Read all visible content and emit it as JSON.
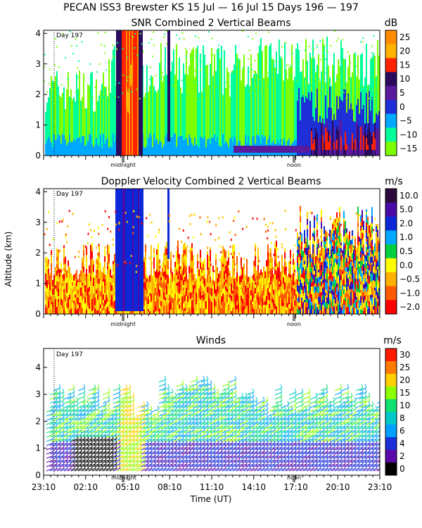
{
  "figure": {
    "title": "PECAN ISS3 Brewster KS  15 Jul — 16 Jul 15 Days 196 — 197",
    "ylabel": "Altitude (km)",
    "xlabel": "Time (UT)"
  },
  "chart_data": [
    {
      "type": "heatmap",
      "title": "SNR Combined 2 Vertical Beams",
      "units": "dB",
      "day_marker": "Day 197",
      "xmarkers": [
        "midnight",
        "noon"
      ],
      "ylim": [
        0,
        4.1
      ],
      "yticks": [
        0,
        1,
        2,
        3,
        4
      ],
      "colorbar": {
        "labels": [
          "25",
          "20",
          "15",
          "10",
          "5",
          "0",
          "−5",
          "−10",
          "−15"
        ],
        "colors": [
          "#ff8c00",
          "#ffb300",
          "#ff2200",
          "#2a0a5c",
          "#5a1a9e",
          "#1e2fd8",
          "#00a8ff",
          "#00ff9a",
          "#7cff00"
        ]
      }
    },
    {
      "type": "heatmap",
      "title": "Doppler Velocity Combined 2 Vertical Beams",
      "units": "m/s",
      "day_marker": "Day 197",
      "xmarkers": [
        "midnight",
        "noon"
      ],
      "ylim": [
        0,
        4.1
      ],
      "yticks": [
        0,
        1,
        2,
        3,
        4
      ],
      "colorbar": {
        "labels": [
          "10.0",
          "5.0",
          "2.0",
          "1.0",
          "0.5",
          "0.0",
          "−0.5",
          "−1.0",
          "−2.0"
        ],
        "colors": [
          "#2a0a3c",
          "#4a0aa8",
          "#0a28d8",
          "#00a8ff",
          "#00d040",
          "#ffff00",
          "#ffb000",
          "#ff5a00",
          "#ff0000"
        ]
      }
    },
    {
      "type": "wind_barbs",
      "title": "Winds",
      "units": "m/s",
      "day_marker": "Day 197",
      "xmarkers": [
        "midnight",
        "noon"
      ],
      "ylim": [
        0,
        4.7
      ],
      "yticks": [
        0,
        1,
        2,
        3,
        4
      ],
      "xticks": [
        "23:10",
        "02:10",
        "05:10",
        "08:10",
        "11:10",
        "14:10",
        "17:10",
        "20:10",
        "23:10"
      ],
      "colorbar": {
        "labels": [
          "30",
          "25",
          "20",
          "15",
          "10",
          "8",
          "6",
          "4",
          "2",
          "0"
        ],
        "colors": [
          "#ff1a00",
          "#ff7a00",
          "#ffd000",
          "#8cff00",
          "#10e070",
          "#00c8c8",
          "#00a0ff",
          "#1a2fd8",
          "#5a0aa8",
          "#000000"
        ]
      }
    }
  ]
}
